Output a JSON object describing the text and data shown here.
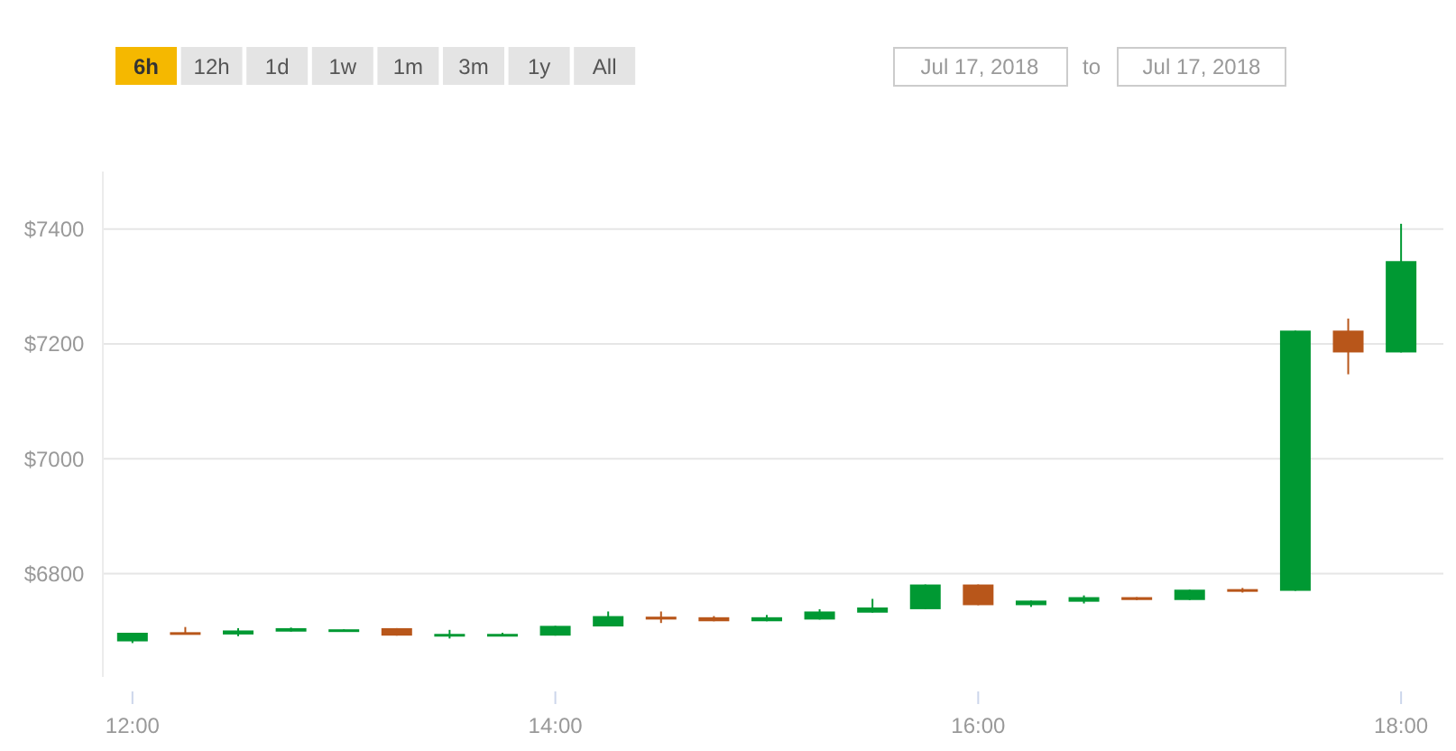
{
  "chart_data": {
    "type": "candlestick",
    "x": [
      12,
      12.25,
      12.5,
      12.75,
      13,
      13.25,
      13.5,
      13.75,
      14,
      14.25,
      14.5,
      14.75,
      15,
      15.25,
      15.5,
      15.75,
      16,
      16.25,
      16.5,
      16.75,
      17,
      17.25,
      17.5,
      17.75,
      18
    ],
    "ohlc": [
      [
        6682,
        6697,
        6679,
        6697
      ],
      [
        6698,
        6707,
        6695,
        6695
      ],
      [
        6694,
        6705,
        6691,
        6701
      ],
      [
        6699,
        6706,
        6699,
        6705
      ],
      [
        6701,
        6703,
        6701,
        6703
      ],
      [
        6705,
        6705,
        6692,
        6692
      ],
      [
        6691,
        6702,
        6687,
        6695
      ],
      [
        6691,
        6697,
        6691,
        6695
      ],
      [
        6692,
        6709,
        6692,
        6709
      ],
      [
        6708,
        6734,
        6708,
        6726
      ],
      [
        6725,
        6734,
        6714,
        6720
      ],
      [
        6724,
        6726,
        6717,
        6717
      ],
      [
        6717,
        6728,
        6717,
        6724
      ],
      [
        6720,
        6738,
        6720,
        6734
      ],
      [
        6732,
        6756,
        6732,
        6741
      ],
      [
        6738,
        6781,
        6738,
        6781
      ],
      [
        6781,
        6781,
        6745,
        6745
      ],
      [
        6745,
        6753,
        6742,
        6753
      ],
      [
        6751,
        6762,
        6748,
        6759
      ],
      [
        6759,
        6759,
        6754,
        6754
      ],
      [
        6754,
        6772,
        6754,
        6772
      ],
      [
        6773,
        6775,
        6767,
        6770
      ],
      [
        6770,
        7223,
        6770,
        7223
      ],
      [
        7223,
        7244,
        7147,
        7185
      ],
      [
        7185,
        7409,
        7185,
        7344
      ]
    ],
    "colors": [
      "#009933",
      "#b8561a",
      "#009933",
      "#009933",
      "#009933",
      "#b8561a",
      "#009933",
      "#009933",
      "#009933",
      "#009933",
      "#b8561a",
      "#b8561a",
      "#009933",
      "#009933",
      "#009933",
      "#009933",
      "#b8561a",
      "#009933",
      "#009933",
      "#b8561a",
      "#009933",
      "#b8561a",
      "#009933",
      "#b8561a",
      "#009933"
    ],
    "xlim": [
      11.86,
      18.2
    ],
    "xticks": [
      {
        "value": 12,
        "label": "12:00"
      },
      {
        "value": 14,
        "label": "14:00"
      },
      {
        "value": 16,
        "label": "16:00"
      },
      {
        "value": 18,
        "label": "18:00"
      }
    ],
    "yticks": [
      {
        "value": 6800,
        "label": "$6800"
      },
      {
        "value": 7000,
        "label": "$7000"
      },
      {
        "value": 7200,
        "label": "$7200"
      },
      {
        "value": 7400,
        "label": "$7400"
      }
    ],
    "ylim": [
      6620,
      7500
    ],
    "grid": "y",
    "annotations": [
      "6h",
      "12h",
      "1d",
      "1w",
      "1m",
      "3m",
      "1y",
      "All",
      "Jul 17, 2018",
      "to",
      "Jul 17, 2018"
    ]
  }
}
